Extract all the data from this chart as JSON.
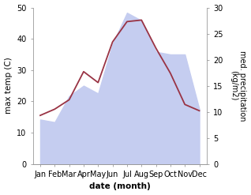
{
  "months": [
    "Jan",
    "Feb",
    "Mar",
    "Apr",
    "May",
    "Jun",
    "Jul",
    "Aug",
    "Sep",
    "Oct",
    "Nov",
    "Dec"
  ],
  "month_x": [
    0,
    1,
    2,
    3,
    4,
    5,
    6,
    7,
    8,
    9,
    10,
    11
  ],
  "temp_max": [
    15.5,
    17.5,
    20.5,
    29.5,
    26.0,
    39.0,
    45.5,
    46.0,
    37.0,
    29.0,
    19.0,
    17.0
  ],
  "precip": [
    8.5,
    8.0,
    13.0,
    15.0,
    13.5,
    23.0,
    29.0,
    27.5,
    21.5,
    21.0,
    21.0,
    10.5
  ],
  "temp_ylim": [
    0,
    50
  ],
  "precip_ylim": [
    0,
    30
  ],
  "temp_color": "#993344",
  "precip_fill_color": "#c5cdf0",
  "bg_color": "#ffffff",
  "xlabel": "date (month)",
  "ylabel_left": "max temp (C)",
  "ylabel_right": "med. precipitation\n(kg/m2)",
  "label_fontsize": 7.5,
  "tick_fontsize": 7.0
}
